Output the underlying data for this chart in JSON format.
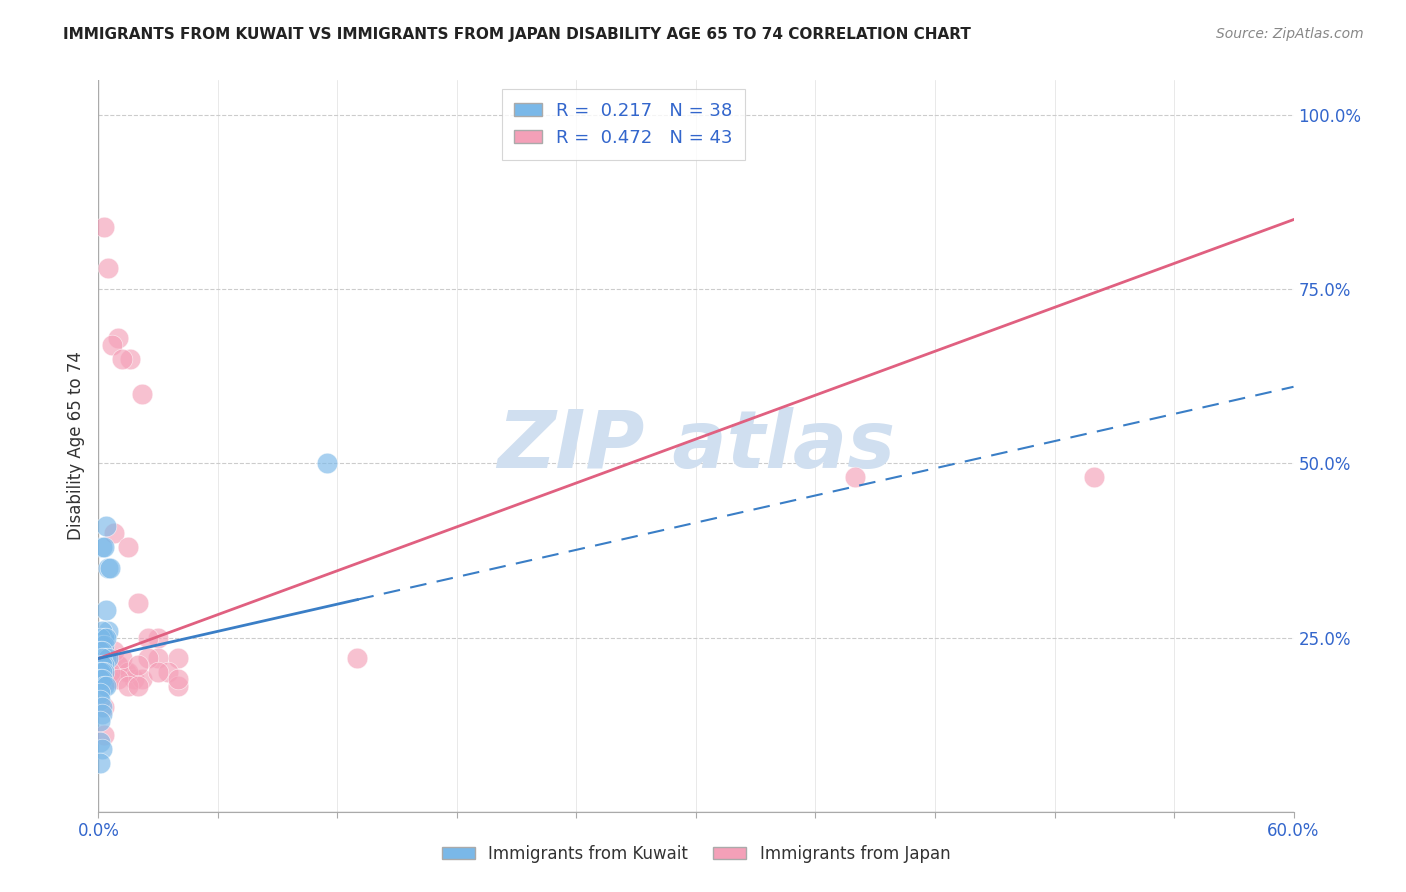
{
  "title": "IMMIGRANTS FROM KUWAIT VS IMMIGRANTS FROM JAPAN DISABILITY AGE 65 TO 74 CORRELATION CHART",
  "source": "Source: ZipAtlas.com",
  "ylabel": "Disability Age 65 to 74",
  "xlim": [
    0.0,
    0.6
  ],
  "ylim": [
    0.0,
    1.05
  ],
  "kuwait_R": 0.217,
  "kuwait_N": 38,
  "japan_R": 0.472,
  "japan_N": 43,
  "kuwait_color": "#7ab8e8",
  "japan_color": "#f4a0b8",
  "kuwait_line_color": "#3a7ec6",
  "japan_line_color": "#e06080",
  "background_color": "#ffffff",
  "grid_color": "#cccccc",
  "watermark_color": "#d0dff0",
  "axis_label_color": "#3366cc",
  "title_color": "#222222",
  "source_color": "#888888",
  "legend_text_color": "#3366cc",
  "bottom_legend_color": "#333333",
  "japan_intercept": 0.22,
  "japan_slope": 1.05,
  "kuwait_intercept": 0.22,
  "kuwait_slope": 0.65,
  "kuwait_x": [
    0.002,
    0.003,
    0.004,
    0.005,
    0.006,
    0.003,
    0.004,
    0.005,
    0.002,
    0.003,
    0.001,
    0.002,
    0.003,
    0.004,
    0.001,
    0.002,
    0.003,
    0.004,
    0.005,
    0.002,
    0.003,
    0.002,
    0.003,
    0.001,
    0.002,
    0.001,
    0.002,
    0.003,
    0.004,
    0.001,
    0.001,
    0.002,
    0.115,
    0.002,
    0.001,
    0.001,
    0.002,
    0.001
  ],
  "kuwait_y": [
    0.38,
    0.38,
    0.41,
    0.35,
    0.35,
    0.25,
    0.29,
    0.26,
    0.26,
    0.25,
    0.25,
    0.24,
    0.24,
    0.25,
    0.23,
    0.23,
    0.22,
    0.22,
    0.22,
    0.22,
    0.21,
    0.21,
    0.2,
    0.2,
    0.2,
    0.19,
    0.19,
    0.18,
    0.18,
    0.17,
    0.16,
    0.15,
    0.5,
    0.14,
    0.13,
    0.1,
    0.09,
    0.07
  ],
  "japan_x": [
    0.005,
    0.01,
    0.016,
    0.022,
    0.03,
    0.04,
    0.003,
    0.007,
    0.012,
    0.008,
    0.015,
    0.02,
    0.025,
    0.03,
    0.003,
    0.006,
    0.01,
    0.014,
    0.018,
    0.022,
    0.003,
    0.005,
    0.01,
    0.015,
    0.003,
    0.006,
    0.025,
    0.035,
    0.04,
    0.008,
    0.012,
    0.02,
    0.03,
    0.04,
    0.38,
    0.5,
    0.006,
    0.01,
    0.015,
    0.02,
    0.13,
    0.003,
    0.003
  ],
  "japan_y": [
    0.78,
    0.68,
    0.65,
    0.6,
    0.25,
    0.22,
    0.84,
    0.67,
    0.65,
    0.4,
    0.38,
    0.3,
    0.25,
    0.22,
    0.25,
    0.22,
    0.21,
    0.2,
    0.19,
    0.19,
    0.23,
    0.22,
    0.21,
    0.2,
    0.2,
    0.19,
    0.22,
    0.2,
    0.18,
    0.23,
    0.22,
    0.21,
    0.2,
    0.19,
    0.48,
    0.48,
    0.2,
    0.19,
    0.18,
    0.18,
    0.22,
    0.15,
    0.11
  ]
}
